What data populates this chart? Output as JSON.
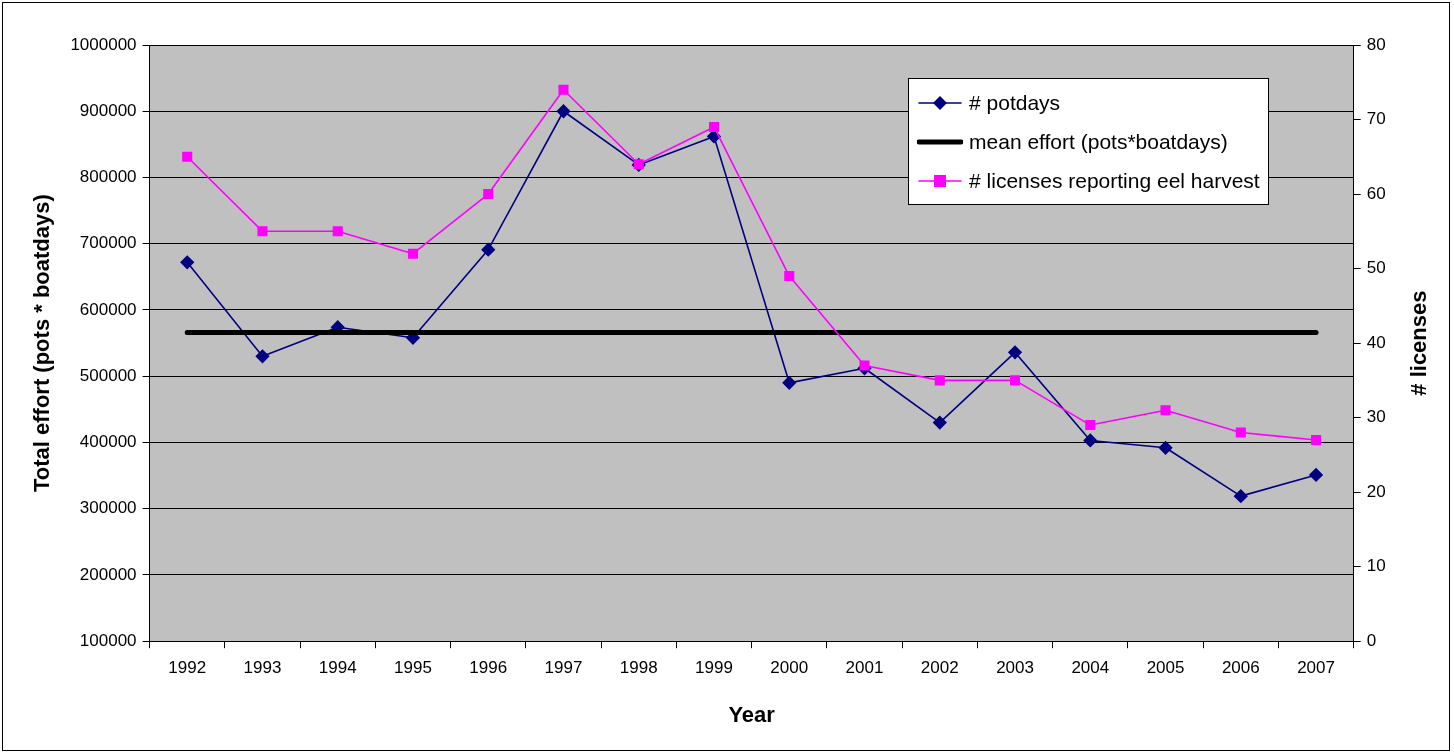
{
  "chart_data": {
    "type": "line",
    "xlabel": "Year",
    "ylabel": "Total effort (pots * boatdays)",
    "y2label": "# licenses",
    "categories": [
      "1992",
      "1993",
      "1994",
      "1995",
      "1996",
      "1997",
      "1998",
      "1999",
      "2000",
      "2001",
      "2002",
      "2003",
      "2004",
      "2005",
      "2006",
      "2007"
    ],
    "series": [
      {
        "name": "# potdays",
        "color": "#000080",
        "marker": "diamond",
        "values": [
          672000,
          530000,
          574000,
          558000,
          691000,
          900000,
          819000,
          862000,
          490000,
          512000,
          430000,
          536000,
          403000,
          392000,
          319000,
          351000
        ]
      },
      {
        "name": "mean effort (pots*boatdays)",
        "color": "#000000",
        "marker": "none",
        "values": [
          566000,
          566000,
          566000,
          566000,
          566000,
          566000,
          566000,
          566000,
          566000,
          566000,
          566000,
          566000,
          566000,
          566000,
          566000,
          566000
        ]
      },
      {
        "name": "# licenses reporting eel harvest",
        "color": "#ff00ff",
        "marker": "square",
        "axis": "y2",
        "values": [
          65,
          55,
          55,
          52,
          60,
          74,
          64,
          69,
          49,
          37,
          35,
          35,
          29,
          31,
          28,
          27
        ]
      }
    ],
    "ylim": [
      100000,
      1000000
    ],
    "yticks": [
      100000,
      200000,
      300000,
      400000,
      500000,
      600000,
      700000,
      800000,
      900000,
      1000000
    ],
    "y2lim": [
      0,
      80
    ],
    "y2ticks": [
      0,
      10,
      20,
      30,
      40,
      50,
      60,
      70,
      80
    ],
    "grid": "y",
    "legend": "top right"
  }
}
